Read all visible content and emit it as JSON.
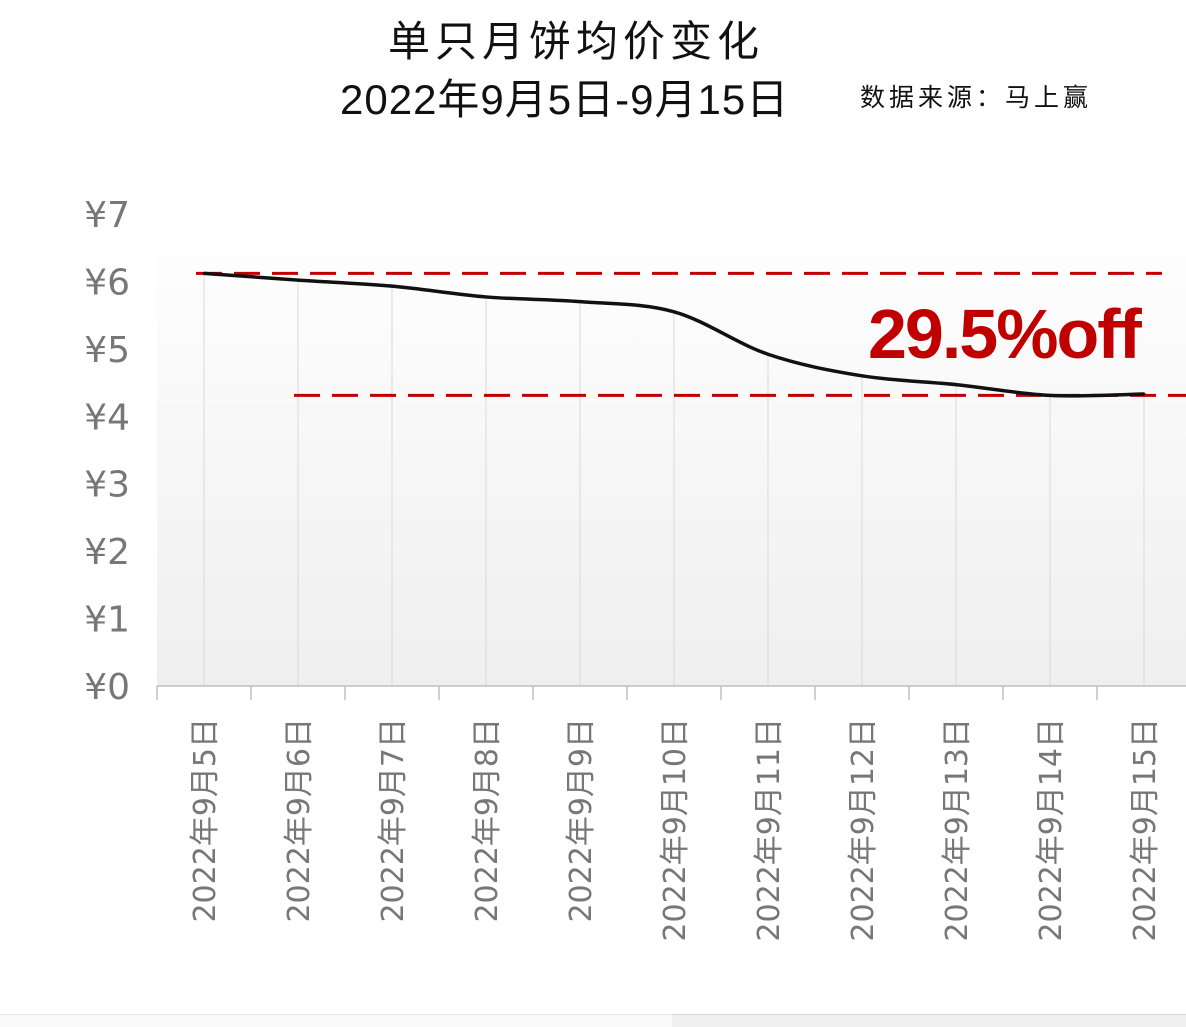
{
  "header": {
    "title": "单只月饼均价变化",
    "subtitle": "2022年9月5日-9月15日",
    "source": "数据来源：马上赢"
  },
  "chart_data": {
    "type": "line",
    "categories": [
      "2022年9月5日",
      "2022年9月6日",
      "2022年9月7日",
      "2022年9月8日",
      "2022年9月9日",
      "2022年9月10日",
      "2022年9月11日",
      "2022年9月12日",
      "2022年9月13日",
      "2022年9月14日",
      "2022年9月15日"
    ],
    "values": [
      6.12,
      6.02,
      5.93,
      5.77,
      5.7,
      5.55,
      4.92,
      4.6,
      4.47,
      4.31,
      4.33
    ],
    "y_ticks": [
      "¥0",
      "¥1",
      "¥2",
      "¥3",
      "¥4",
      "¥5",
      "¥6",
      "¥7"
    ],
    "ylim": [
      0,
      7
    ],
    "annotation": "29.5%off",
    "reference_lines": [
      6.12,
      4.31
    ],
    "colors": {
      "line": "#111111",
      "reference": "#c00000",
      "annotation": "#c00000",
      "axis_text": "#777777",
      "grid": "#d9d9d9"
    }
  }
}
